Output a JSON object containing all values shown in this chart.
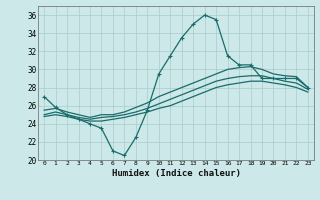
{
  "title": "",
  "xlabel": "Humidex (Indice chaleur)",
  "ylabel": "",
  "background_color": "#cce8e8",
  "grid_color": "#aacccc",
  "line_color": "#1a6b6b",
  "ylim": [
    20,
    37
  ],
  "xlim": [
    -0.5,
    23.5
  ],
  "yticks": [
    20,
    22,
    24,
    26,
    28,
    30,
    32,
    34,
    36
  ],
  "xticks": [
    0,
    1,
    2,
    3,
    4,
    5,
    6,
    7,
    8,
    9,
    10,
    11,
    12,
    13,
    14,
    15,
    16,
    17,
    18,
    19,
    20,
    21,
    22,
    23
  ],
  "line1_x": [
    0,
    1,
    2,
    3,
    4,
    5,
    6,
    7,
    8,
    9,
    10,
    11,
    12,
    13,
    14,
    15,
    16,
    17,
    18,
    19,
    20,
    21,
    22,
    23
  ],
  "line1_y": [
    27.0,
    25.8,
    25.0,
    24.5,
    24.0,
    23.5,
    21.0,
    20.5,
    22.5,
    25.5,
    29.5,
    31.5,
    33.5,
    35.0,
    36.0,
    35.5,
    31.5,
    30.5,
    30.5,
    29.0,
    29.0,
    29.0,
    29.0,
    28.0
  ],
  "line2_x": [
    0,
    1,
    2,
    3,
    4,
    5,
    6,
    7,
    8,
    9,
    10,
    11,
    12,
    13,
    14,
    15,
    16,
    17,
    18,
    19,
    20,
    21,
    22,
    23
  ],
  "line2_y": [
    25.5,
    25.7,
    25.3,
    25.0,
    24.7,
    25.0,
    25.0,
    25.3,
    25.8,
    26.3,
    27.0,
    27.5,
    28.0,
    28.5,
    29.0,
    29.5,
    30.0,
    30.2,
    30.3,
    30.0,
    29.5,
    29.3,
    29.2,
    28.0
  ],
  "line3_x": [
    0,
    1,
    2,
    3,
    4,
    5,
    6,
    7,
    8,
    9,
    10,
    11,
    12,
    13,
    14,
    15,
    16,
    17,
    18,
    19,
    20,
    21,
    22,
    23
  ],
  "line3_y": [
    25.0,
    25.3,
    25.0,
    24.7,
    24.5,
    24.7,
    24.8,
    25.0,
    25.3,
    25.7,
    26.2,
    26.7,
    27.2,
    27.7,
    28.2,
    28.7,
    29.0,
    29.2,
    29.3,
    29.3,
    29.0,
    28.7,
    28.5,
    27.8
  ],
  "line4_x": [
    0,
    1,
    2,
    3,
    4,
    5,
    6,
    7,
    8,
    9,
    10,
    11,
    12,
    13,
    14,
    15,
    16,
    17,
    18,
    19,
    20,
    21,
    22,
    23
  ],
  "line4_y": [
    24.8,
    25.0,
    24.8,
    24.5,
    24.3,
    24.3,
    24.5,
    24.7,
    25.0,
    25.3,
    25.7,
    26.0,
    26.5,
    27.0,
    27.5,
    28.0,
    28.3,
    28.5,
    28.7,
    28.7,
    28.5,
    28.3,
    28.0,
    27.5
  ]
}
